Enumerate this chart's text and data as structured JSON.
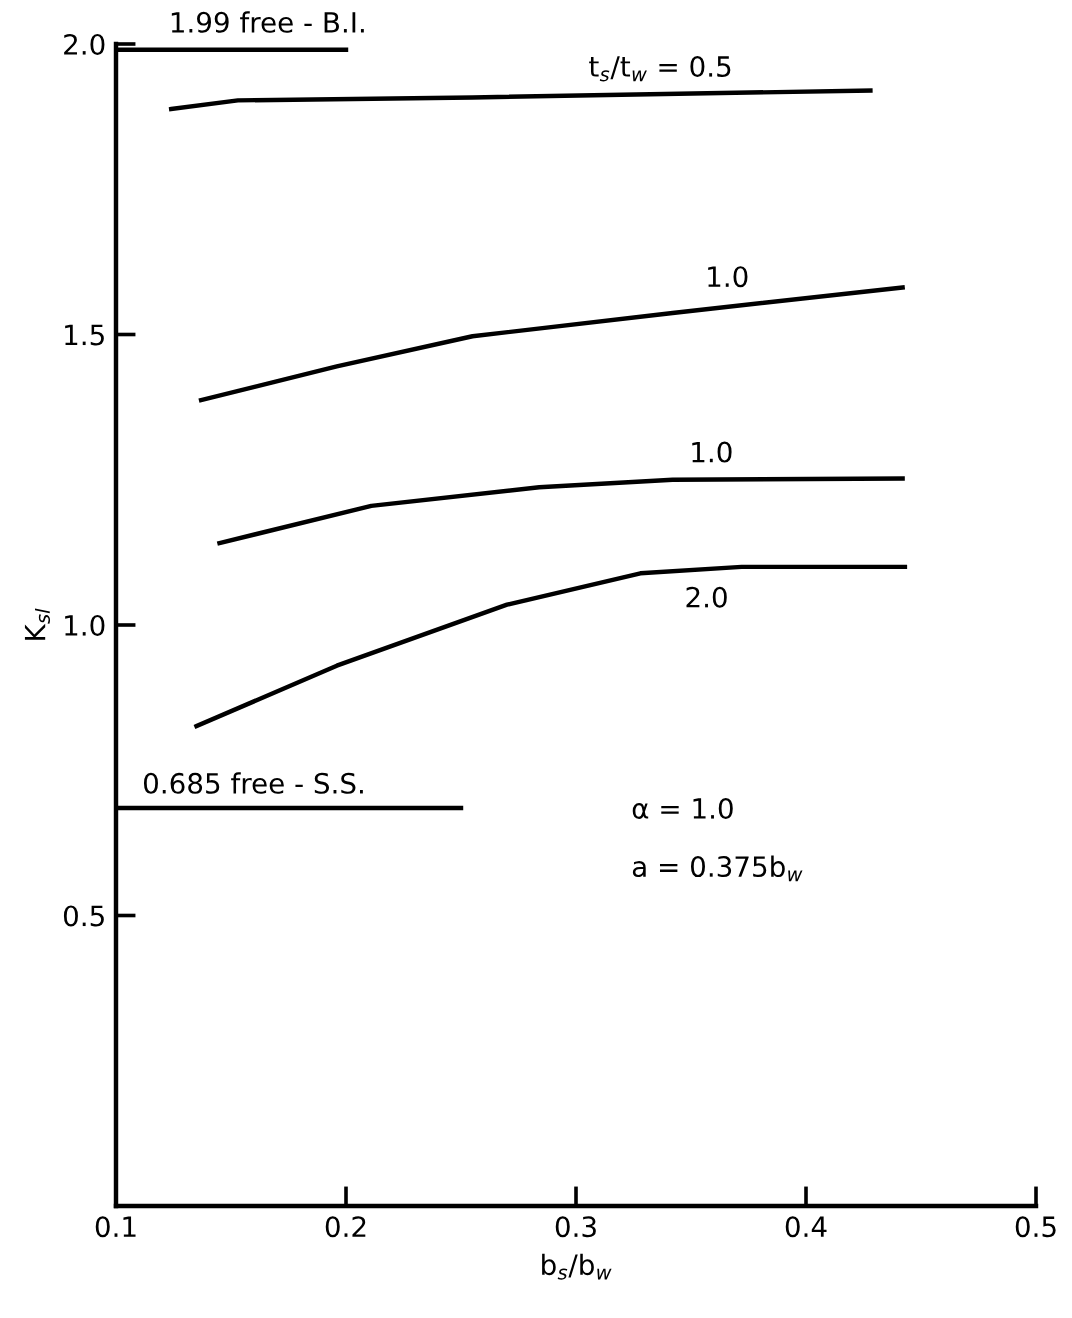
{
  "chart_data": {
    "type": "line",
    "xlabel": "b$_{s}$/b$_{w}$",
    "ylabel": "K$_{sl}$",
    "xlim": [
      0.1,
      0.5
    ],
    "ylim": [
      0,
      2.0
    ],
    "xticks": [
      0.1,
      0.2,
      0.3,
      0.4,
      0.5
    ],
    "yticks": [
      0.5,
      {
        "value": 1.0,
        "label": "1.0"
      },
      1.5,
      {
        "value": 2.0,
        "label": "2.0"
      }
    ],
    "grid": false,
    "legend": false,
    "marker": "none",
    "line_style": "solid",
    "series": [
      {
        "name": "t$_{s}$/t$_{w}$ = 0.5",
        "color": "#000000",
        "x": [
          0.124,
          0.153,
          0.255,
          0.428
        ],
        "values": [
          1.888,
          1.903,
          1.908,
          1.92
        ]
      },
      {
        "name": "1.0",
        "color": "#000000",
        "x": [
          0.137,
          0.196,
          0.255,
          0.342,
          0.442
        ],
        "values": [
          1.387,
          1.445,
          1.497,
          1.537,
          1.581
        ]
      },
      {
        "name": "1.0",
        "color": "#000000",
        "x": [
          0.145,
          0.211,
          0.284,
          0.342,
          0.442
        ],
        "values": [
          1.141,
          1.205,
          1.237,
          1.25,
          1.252
        ]
      },
      {
        "name": "2.0",
        "color": "#000000",
        "x": [
          0.135,
          0.196,
          0.27,
          0.328,
          0.372,
          0.443
        ],
        "values": [
          0.826,
          0.93,
          1.035,
          1.089,
          1.1,
          1.1
        ]
      },
      {
        "name": "1.99 free - B.I.",
        "color": "#000000",
        "x": [
          0.1,
          0.2
        ],
        "values": [
          1.99,
          1.99
        ]
      },
      {
        "name": "0.685 free - S.S.",
        "color": "#000000",
        "x": [
          0.1,
          0.25
        ],
        "values": [
          0.685,
          0.685
        ]
      }
    ],
    "annotations": [
      "α = 1.0",
      "a = 0.375b$_{w}$"
    ]
  }
}
